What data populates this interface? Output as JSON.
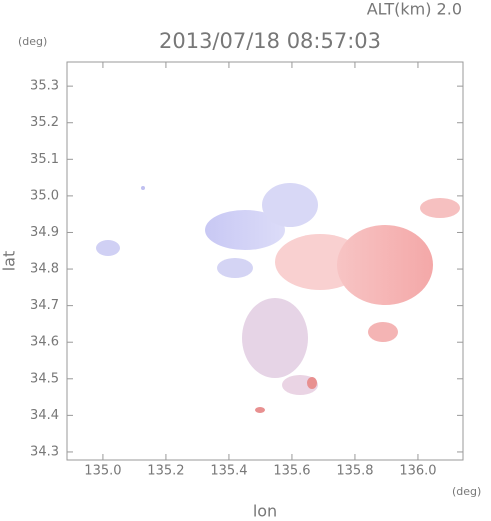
{
  "chart_data": {
    "type": "map",
    "title": "2013/07/18 08:57:03",
    "annotation": "ALT(km) 2.0",
    "xlabel": "lon",
    "ylabel": "lat",
    "xunit": "(deg)",
    "yunit": "(deg)",
    "xlim": [
      134.886,
      136.143
    ],
    "ylim": [
      34.278,
      35.366
    ],
    "xticks": [
      {
        "value": 135,
        "label": "135.0"
      },
      135.2,
      135.4,
      135.6,
      135.8,
      {
        "value": 136,
        "label": "136.0"
      }
    ],
    "yticks": [
      34.3,
      34.4,
      34.5,
      34.6,
      34.7,
      34.8,
      34.9,
      {
        "value": 35,
        "label": "35.0"
      },
      35.1,
      35.2,
      35.3
    ]
  }
}
